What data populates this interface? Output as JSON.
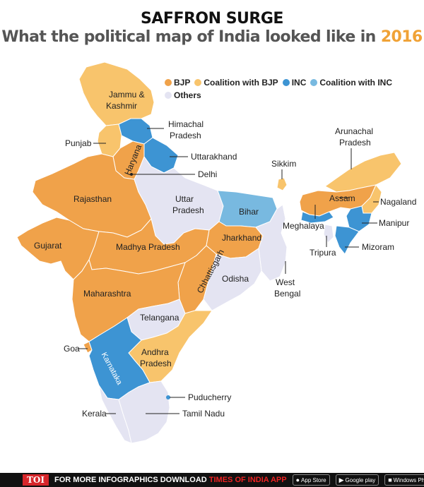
{
  "header": {
    "title": "SAFFRON SURGE",
    "subtitle": "What the political map of India looked like in",
    "year": "2016"
  },
  "colors": {
    "bjp": "#f0a24a",
    "coalition_bjp": "#f8c46c",
    "inc": "#3d94d3",
    "coalition_inc": "#78b9e0",
    "others": "#e4e4f2",
    "year_accent": "#f0a236"
  },
  "legend": {
    "bjp": "BJP",
    "coalition_bjp": "Coalition with BJP",
    "inc": "INC",
    "coalition_inc": "Coalition with INC",
    "others": "Others"
  },
  "states": {
    "jk": {
      "name": "Jammu &",
      "name2": "Kashmir",
      "party": "Coalition with BJP"
    },
    "hp": {
      "name": "Himachal",
      "name2": "Pradesh",
      "party": "INC"
    },
    "punjab": {
      "name": "Punjab",
      "party": "Coalition with BJP"
    },
    "uk": {
      "name": "Uttarakhand",
      "party": "INC"
    },
    "haryana": {
      "name": "Haryana",
      "party": "BJP"
    },
    "delhi": {
      "name": "Delhi",
      "party": "Others"
    },
    "rajasthan": {
      "name": "Rajasthan",
      "party": "BJP"
    },
    "up": {
      "name": "Uttar",
      "name2": "Pradesh",
      "party": "Others"
    },
    "bihar": {
      "name": "Bihar",
      "party": "Coalition with INC"
    },
    "sikkim": {
      "name": "Sikkim",
      "party": "Coalition with BJP"
    },
    "arunachal": {
      "name": "Arunachal",
      "name2": "Pradesh",
      "party": "Coalition with BJP"
    },
    "assam": {
      "name": "Assam",
      "party": "BJP"
    },
    "nagaland": {
      "name": "Nagaland",
      "party": "Coalition with BJP"
    },
    "meghalaya": {
      "name": "Meghalaya",
      "party": "INC"
    },
    "manipur": {
      "name": "Manipur",
      "party": "INC"
    },
    "tripura": {
      "name": "Tripura",
      "party": "Others"
    },
    "mizoram": {
      "name": "Mizoram",
      "party": "INC"
    },
    "gujarat": {
      "name": "Gujarat",
      "party": "BJP"
    },
    "mp": {
      "name": "Madhya Pradesh",
      "party": "BJP"
    },
    "jharkhand": {
      "name": "Jharkhand",
      "party": "BJP"
    },
    "wb": {
      "name": "West",
      "name2": "Bengal",
      "party": "Others"
    },
    "chhattisgarh": {
      "name": "Chhattisgarh",
      "party": "BJP"
    },
    "odisha": {
      "name": "Odisha",
      "party": "Others"
    },
    "maharashtra": {
      "name": "Maharashtra",
      "party": "BJP"
    },
    "telangana": {
      "name": "Telangana",
      "party": "Others"
    },
    "goa": {
      "name": "Goa",
      "party": "BJP"
    },
    "ap": {
      "name": "Andhra",
      "name2": "Pradesh",
      "party": "Coalition with BJP"
    },
    "karnataka": {
      "name": "Karnataka",
      "party": "INC"
    },
    "puducherry": {
      "name": "Puducherry",
      "party": "INC"
    },
    "kerala": {
      "name": "Kerala",
      "party": "Others"
    },
    "tn": {
      "name": "Tamil Nadu",
      "party": "Others"
    }
  },
  "footer": {
    "logo": "TOI",
    "text": "FOR MORE  INFOGRAPHICS DOWNLOAD",
    "brand": "TIMES OF INDIA APP",
    "app_store": "App Store",
    "google_play": "Google play",
    "windows": "Windows Phone"
  }
}
